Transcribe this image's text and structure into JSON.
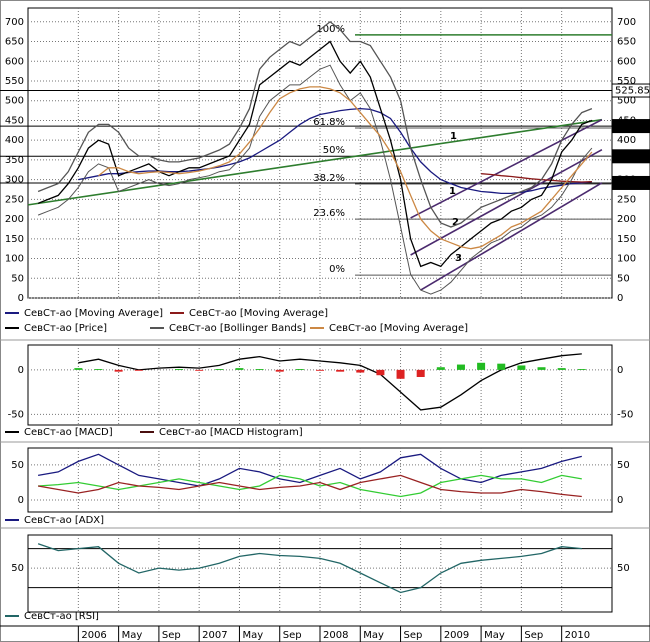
{
  "chart_data": [
    {
      "type": "line",
      "xlim": [
        "2005-08",
        "2010-06"
      ],
      "ylim": [
        0,
        735
      ],
      "yticks": [
        0,
        50,
        100,
        150,
        200,
        250,
        300,
        350,
        400,
        450,
        500,
        550,
        600,
        650,
        700
      ],
      "grid": true,
      "x": [
        "2005-09",
        "2005-10",
        "2005-11",
        "2005-12",
        "2006-01",
        "2006-02",
        "2006-03",
        "2006-04",
        "2006-05",
        "2006-06",
        "2006-07",
        "2006-08",
        "2006-09",
        "2006-10",
        "2006-11",
        "2006-12",
        "2007-01",
        "2007-02",
        "2007-03",
        "2007-04",
        "2007-05",
        "2007-06",
        "2007-07",
        "2007-08",
        "2007-09",
        "2007-10",
        "2007-11",
        "2007-12",
        "2008-01",
        "2008-02",
        "2008-03",
        "2008-04",
        "2008-05",
        "2008-06",
        "2008-07",
        "2008-08",
        "2008-09",
        "2008-10",
        "2008-11",
        "2008-12",
        "2009-01",
        "2009-02",
        "2009-03",
        "2009-04",
        "2009-05",
        "2009-06",
        "2009-07",
        "2009-08",
        "2009-09",
        "2009-10",
        "2009-11",
        "2009-12",
        "2010-01",
        "2010-02",
        "2010-03",
        "2010-04"
      ],
      "series": [
        {
          "name": "СевСт-ао [Moving Average]",
          "color": "#1a1a80",
          "values": [
            null,
            null,
            null,
            null,
            300,
            305,
            310,
            315,
            315,
            318,
            320,
            322,
            322,
            320,
            320,
            322,
            325,
            328,
            332,
            338,
            345,
            355,
            370,
            385,
            400,
            420,
            440,
            455,
            465,
            470,
            475,
            478,
            480,
            478,
            470,
            455,
            420,
            380,
            345,
            320,
            300,
            290,
            280,
            275,
            270,
            268,
            265,
            265,
            268,
            272,
            278,
            282,
            286,
            290,
            292,
            295
          ]
        },
        {
          "name": "СевСт-ао [Moving Average]",
          "color": "#8b1a1a",
          "values": [
            null,
            null,
            null,
            null,
            null,
            null,
            null,
            null,
            null,
            null,
            null,
            null,
            null,
            null,
            null,
            null,
            null,
            null,
            null,
            null,
            null,
            null,
            null,
            null,
            null,
            null,
            null,
            null,
            null,
            null,
            null,
            null,
            null,
            null,
            null,
            null,
            null,
            null,
            null,
            null,
            null,
            null,
            null,
            null,
            315,
            313,
            310,
            308,
            305,
            302,
            300,
            298,
            296,
            295,
            294,
            295
          ]
        },
        {
          "name": "СевСт-ао [Price]",
          "color": "#000000",
          "values": [
            240,
            250,
            260,
            290,
            330,
            380,
            400,
            390,
            310,
            320,
            330,
            340,
            320,
            310,
            320,
            330,
            330,
            340,
            350,
            360,
            400,
            440,
            540,
            560,
            580,
            600,
            590,
            610,
            630,
            650,
            600,
            570,
            600,
            560,
            480,
            400,
            300,
            150,
            80,
            90,
            80,
            110,
            130,
            150,
            170,
            190,
            200,
            220,
            230,
            250,
            260,
            300,
            370,
            400,
            440,
            450
          ]
        },
        {
          "name": "СевСт-ао [Bollinger Bands]",
          "color": "#555555",
          "values": [
            270,
            280,
            290,
            320,
            370,
            420,
            440,
            440,
            420,
            380,
            360,
            360,
            350,
            345,
            345,
            350,
            355,
            365,
            375,
            390,
            430,
            480,
            580,
            610,
            630,
            650,
            640,
            660,
            680,
            700,
            680,
            650,
            650,
            640,
            600,
            560,
            500,
            380,
            300,
            230,
            190,
            180,
            190,
            210,
            230,
            240,
            250,
            260,
            270,
            280,
            300,
            340,
            400,
            440,
            470,
            480
          ],
          "lower": [
            210,
            220,
            230,
            250,
            280,
            320,
            340,
            330,
            270,
            280,
            290,
            300,
            290,
            285,
            290,
            300,
            305,
            310,
            320,
            325,
            350,
            380,
            460,
            500,
            520,
            540,
            540,
            560,
            580,
            590,
            540,
            500,
            520,
            480,
            400,
            300,
            180,
            60,
            20,
            10,
            20,
            40,
            70,
            100,
            120,
            140,
            150,
            170,
            180,
            200,
            210,
            230,
            260,
            300,
            350,
            380
          ]
        },
        {
          "name": "СевСт-ао [Moving Average]",
          "color": "#cc8844",
          "values": [
            null,
            null,
            null,
            null,
            null,
            null,
            310,
            330,
            330,
            320,
            315,
            318,
            320,
            318,
            315,
            318,
            322,
            328,
            335,
            345,
            365,
            395,
            430,
            470,
            505,
            520,
            530,
            535,
            535,
            530,
            520,
            500,
            470,
            440,
            410,
            370,
            320,
            260,
            200,
            170,
            150,
            140,
            130,
            125,
            130,
            145,
            160,
            180,
            190,
            205,
            220,
            250,
            280,
            310,
            340,
            370
          ]
        }
      ],
      "price_levels": [
        525.85,
        435.74,
        359.14,
        291.56
      ],
      "fibonacci": [
        {
          "label": "100%",
          "level": 667
        },
        {
          "label": "61.8%",
          "level": 431
        },
        {
          "label": "50%",
          "level": 360
        },
        {
          "label": "38.2%",
          "level": 289
        },
        {
          "label": "23.6%",
          "level": 200
        },
        {
          "label": "0%",
          "level": 58
        }
      ],
      "trend_lines": [
        {
          "color": "#2e7d2e",
          "x": [
            "2005-08",
            "2010-05"
          ],
          "values": [
            236,
            452
          ]
        },
        {
          "color": "#4b2a6e",
          "x": [
            "2008-10",
            "2010-05"
          ],
          "values": [
            203,
            452
          ]
        },
        {
          "color": "#4b2a6e",
          "x": [
            "2008-10",
            "2010-05"
          ],
          "values": [
            109,
            376
          ]
        },
        {
          "color": "#4b2a6e",
          "x": [
            "2008-11",
            "2010-05"
          ],
          "values": [
            20,
            292
          ]
        }
      ],
      "annotations": [
        "1",
        "1",
        "2",
        "3"
      ]
    },
    {
      "type": "macd",
      "xlim": [
        "2005-08",
        "2010-06"
      ],
      "ylim": [
        -62,
        28
      ],
      "yticks": [
        0,
        -50
      ],
      "x": [
        "2005-09",
        "2005-11",
        "2006-01",
        "2006-03",
        "2006-05",
        "2006-07",
        "2006-09",
        "2006-11",
        "2007-01",
        "2007-03",
        "2007-05",
        "2007-07",
        "2007-09",
        "2007-11",
        "2008-01",
        "2008-03",
        "2008-05",
        "2008-07",
        "2008-09",
        "2008-11",
        "2009-01",
        "2009-03",
        "2009-05",
        "2009-07",
        "2009-09",
        "2009-11",
        "2010-01",
        "2010-03"
      ],
      "series": [
        {
          "name": "СевСт-ао [MACD]",
          "color": "#000000",
          "values": [
            null,
            null,
            8,
            12,
            5,
            0,
            2,
            3,
            2,
            5,
            12,
            15,
            10,
            12,
            10,
            8,
            5,
            -5,
            -25,
            -45,
            -42,
            -28,
            -12,
            0,
            8,
            12,
            16,
            18
          ]
        },
        {
          "name": "СевСт-ао [MACD Histogram]",
          "color": "#4a0f0f",
          "up_color": "#22bb22",
          "down_color": "#dd2222",
          "values": [
            null,
            null,
            2,
            1,
            -2,
            -1,
            0,
            1,
            -1,
            1,
            2,
            1,
            -2,
            1,
            -1,
            -2,
            -3,
            -6,
            -10,
            -8,
            3,
            6,
            8,
            7,
            5,
            3,
            2,
            1
          ]
        }
      ]
    },
    {
      "type": "line",
      "xlim": [
        "2005-08",
        "2010-06"
      ],
      "ylim": [
        -17,
        74
      ],
      "yticks": [
        50,
        0
      ],
      "x": [
        "2005-09",
        "2005-11",
        "2006-01",
        "2006-03",
        "2006-05",
        "2006-07",
        "2006-09",
        "2006-11",
        "2007-01",
        "2007-03",
        "2007-05",
        "2007-07",
        "2007-09",
        "2007-11",
        "2008-01",
        "2008-03",
        "2008-05",
        "2008-07",
        "2008-09",
        "2008-11",
        "2009-01",
        "2009-03",
        "2009-05",
        "2009-07",
        "2009-09",
        "2009-11",
        "2010-01",
        "2010-03"
      ],
      "series": [
        {
          "name": "СевСт-ао [ADX]",
          "color": "#1a1a80",
          "values": [
            35,
            40,
            55,
            65,
            50,
            35,
            30,
            25,
            20,
            30,
            45,
            40,
            30,
            25,
            35,
            45,
            30,
            40,
            60,
            65,
            45,
            30,
            25,
            35,
            40,
            45,
            55,
            62
          ]
        },
        {
          "color": "#33cc33",
          "values": [
            20,
            22,
            25,
            20,
            15,
            20,
            25,
            30,
            25,
            20,
            15,
            20,
            35,
            30,
            20,
            25,
            15,
            10,
            5,
            10,
            25,
            30,
            35,
            30,
            30,
            25,
            35,
            30
          ]
        },
        {
          "color": "#992222",
          "values": [
            20,
            15,
            10,
            15,
            25,
            20,
            18,
            15,
            20,
            25,
            20,
            15,
            18,
            20,
            25,
            15,
            25,
            30,
            35,
            25,
            15,
            12,
            10,
            10,
            15,
            12,
            8,
            5
          ]
        }
      ]
    },
    {
      "type": "line",
      "xlim": [
        "2005-08",
        "2010-06"
      ],
      "ylim": [
        5,
        84
      ],
      "yticks": [
        50
      ],
      "levels": [
        70,
        30
      ],
      "x": [
        "2005-09",
        "2005-11",
        "2006-01",
        "2006-03",
        "2006-05",
        "2006-07",
        "2006-09",
        "2006-11",
        "2007-01",
        "2007-03",
        "2007-05",
        "2007-07",
        "2007-09",
        "2007-11",
        "2008-01",
        "2008-03",
        "2008-05",
        "2008-07",
        "2008-09",
        "2008-11",
        "2009-01",
        "2009-03",
        "2009-05",
        "2009-07",
        "2009-09",
        "2009-11",
        "2010-01",
        "2010-03"
      ],
      "series": [
        {
          "name": "СевСт-ао [RSI]",
          "color": "#226666",
          "values": [
            75,
            68,
            70,
            72,
            55,
            45,
            50,
            48,
            50,
            55,
            62,
            65,
            63,
            62,
            60,
            55,
            45,
            35,
            25,
            30,
            45,
            55,
            58,
            60,
            62,
            65,
            72,
            70
          ]
        }
      ],
      "xticks": [
        {
          "value": "2006-01",
          "label": "2006"
        },
        {
          "value": "2006-05",
          "label": "May"
        },
        {
          "value": "2006-09",
          "label": "Sep"
        },
        {
          "value": "2007-01",
          "label": "2007"
        },
        {
          "value": "2007-05",
          "label": "May"
        },
        {
          "value": "2007-09",
          "label": "Sep"
        },
        {
          "value": "2008-01",
          "label": "2008"
        },
        {
          "value": "2008-05",
          "label": "May"
        },
        {
          "value": "2008-09",
          "label": "Sep"
        },
        {
          "value": "2009-01",
          "label": "2009"
        },
        {
          "value": "2009-05",
          "label": "May"
        },
        {
          "value": "2009-09",
          "label": "Sep"
        },
        {
          "value": "2010-01",
          "label": "2010"
        }
      ]
    }
  ]
}
